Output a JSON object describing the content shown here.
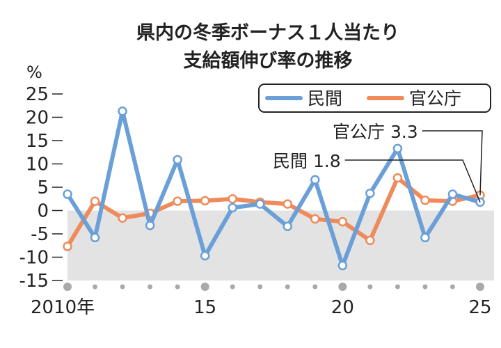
{
  "chart_data": {
    "type": "line",
    "title_line1": "県内の冬季ボーナス１人当たり",
    "title_line2": "支給額伸び率の推移",
    "y_unit": "%",
    "x": [
      2010,
      2011,
      2012,
      2013,
      2014,
      2015,
      2016,
      2017,
      2018,
      2019,
      2020,
      2021,
      2022,
      2023,
      2024,
      2025
    ],
    "x_tick_labels": [
      {
        "x": 2010,
        "label": "2010年"
      },
      {
        "x": 2015,
        "label": "15"
      },
      {
        "x": 2020,
        "label": "20"
      },
      {
        "x": 2025,
        "label": "25"
      }
    ],
    "ylim": [
      -15,
      25
    ],
    "y_ticks": [
      25,
      20,
      15,
      10,
      5,
      0,
      -5,
      -10,
      -15
    ],
    "negative_region_shaded": true,
    "legend_position": "top-right",
    "series": [
      {
        "name": "民間",
        "color": "#6a9fd8",
        "values": [
          3.5,
          -5.8,
          21.3,
          -3.2,
          10.9,
          -9.7,
          0.6,
          1.4,
          -3.4,
          6.6,
          -11.8,
          3.7,
          13.3,
          -5.8,
          3.5,
          1.8
        ]
      },
      {
        "name": "官公庁",
        "color": "#ef8a5a",
        "values": [
          -7.7,
          2.0,
          -1.6,
          -0.6,
          2.0,
          2.1,
          2.5,
          1.8,
          1.4,
          -1.8,
          -2.4,
          -6.4,
          7.0,
          2.2,
          2.0,
          3.3
        ]
      }
    ],
    "annotations": [
      {
        "series": "官公庁",
        "label": "官公庁",
        "value_text": "3.3"
      },
      {
        "series": "民間",
        "label": "民間",
        "value_text": "1.8"
      }
    ]
  }
}
